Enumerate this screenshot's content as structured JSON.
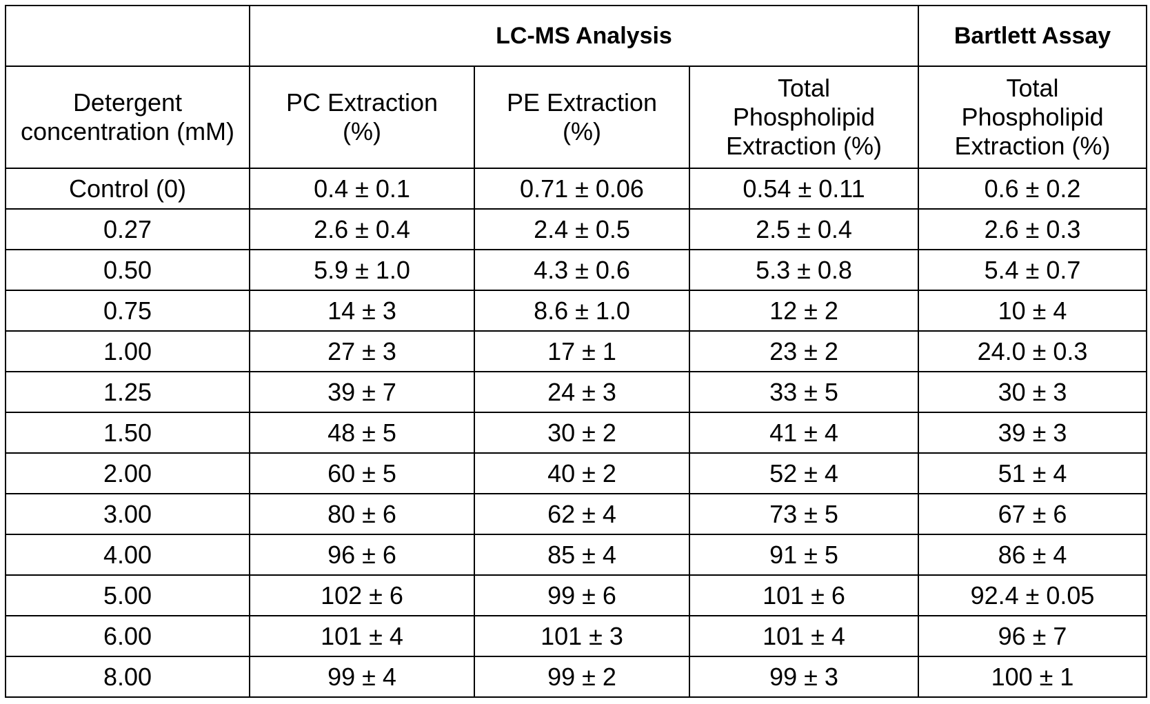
{
  "table": {
    "group_headers": {
      "blank": "",
      "lcms": "LC-MS Analysis",
      "bartlett": "Bartlett Assay"
    },
    "column_headers": [
      "Detergent\nconcentration (mM)",
      "PC Extraction\n(%)",
      "PE Extraction\n(%)",
      "Total\nPhospholipid\nExtraction (%)",
      "Total\nPhospholipid\nExtraction (%)"
    ],
    "rows": [
      [
        "Control (0)",
        "0.4 ± 0.1",
        "0.71 ± 0.06",
        "0.54 ± 0.11",
        "0.6 ± 0.2"
      ],
      [
        "0.27",
        "2.6 ± 0.4",
        "2.4 ± 0.5",
        "2.5 ± 0.4",
        "2.6 ± 0.3"
      ],
      [
        "0.50",
        "5.9 ± 1.0",
        "4.3 ± 0.6",
        "5.3 ± 0.8",
        "5.4 ± 0.7"
      ],
      [
        "0.75",
        "14 ± 3",
        "8.6 ± 1.0",
        "12 ± 2",
        "10 ± 4"
      ],
      [
        "1.00",
        "27 ± 3",
        "17 ± 1",
        "23 ± 2",
        "24.0 ± 0.3"
      ],
      [
        "1.25",
        "39 ± 7",
        "24 ± 3",
        "33 ± 5",
        "30 ± 3"
      ],
      [
        "1.50",
        "48 ± 5",
        "30 ± 2",
        "41 ± 4",
        "39 ± 3"
      ],
      [
        "2.00",
        "60 ± 5",
        "40 ± 2",
        "52 ± 4",
        "51 ± 4"
      ],
      [
        "3.00",
        "80 ± 6",
        "62 ± 4",
        "73 ± 5",
        "67 ± 6"
      ],
      [
        "4.00",
        "96 ± 6",
        "85 ± 4",
        "91 ± 5",
        "86 ± 4"
      ],
      [
        "5.00",
        "102 ± 6",
        "99 ± 6",
        "101 ± 6",
        "92.4 ± 0.05"
      ],
      [
        "6.00",
        "101 ± 4",
        "101 ± 3",
        "101 ± 4",
        "96 ± 7"
      ],
      [
        "8.00",
        "99 ± 4",
        "99 ± 2",
        "99 ± 3",
        "100 ± 1"
      ]
    ]
  }
}
